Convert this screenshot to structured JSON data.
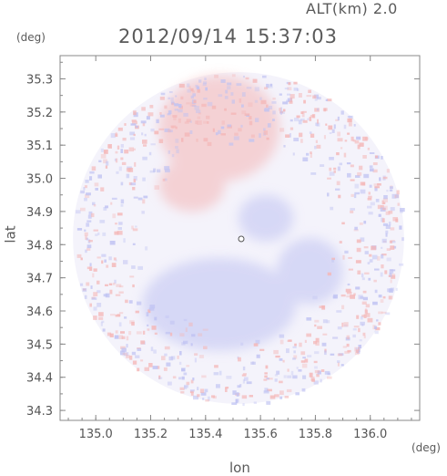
{
  "header": {
    "altitude_label": "ALT(km) 2.0",
    "timestamp": "2012/09/14 15:37:03"
  },
  "axes": {
    "lat_unit": "(deg)",
    "lon_unit": "(deg)",
    "xlabel": "lon",
    "ylabel": "lat"
  },
  "colors": {
    "positive": "#f4b6b6",
    "negative": "#bfc2f2",
    "background_field": "#f4f3fb",
    "frame": "#888888"
  },
  "chart_data": {
    "type": "heatmap",
    "title": "",
    "xlabel": "lon",
    "ylabel": "lat",
    "x_unit": "(deg)",
    "y_unit": "(deg)",
    "xlim": [
      134.87,
      136.18
    ],
    "ylim": [
      34.27,
      35.37
    ],
    "x_ticks": [
      135.0,
      135.2,
      135.4,
      135.6,
      135.8,
      136.0
    ],
    "x_tick_labels": [
      "135.0",
      "135.2",
      "135.4",
      "135.6",
      "135.8",
      "136.0"
    ],
    "y_ticks": [
      34.3,
      34.4,
      34.5,
      34.6,
      34.7,
      34.8,
      34.9,
      35.0,
      35.1,
      35.2,
      35.3
    ],
    "y_tick_labels": [
      "34.3",
      "34.4",
      "34.5",
      "34.6",
      "34.7",
      "34.8",
      "34.9",
      "35.0",
      "35.1",
      "35.2",
      "35.3"
    ],
    "radar_center": [
      135.52,
      34.82
    ],
    "coverage_radius_deg_lat": 0.5,
    "regions": [
      {
        "kind": "positive",
        "lon": 135.45,
        "lat": 35.15,
        "rx": 0.22,
        "ry": 0.16
      },
      {
        "kind": "positive",
        "lon": 135.35,
        "lat": 34.98,
        "rx": 0.12,
        "ry": 0.08
      },
      {
        "kind": "negative",
        "lon": 135.45,
        "lat": 34.62,
        "rx": 0.28,
        "ry": 0.14
      },
      {
        "kind": "negative",
        "lon": 135.78,
        "lat": 34.72,
        "rx": 0.12,
        "ry": 0.1
      },
      {
        "kind": "negative",
        "lon": 135.62,
        "lat": 34.88,
        "rx": 0.1,
        "ry": 0.07
      }
    ],
    "grid": false
  }
}
